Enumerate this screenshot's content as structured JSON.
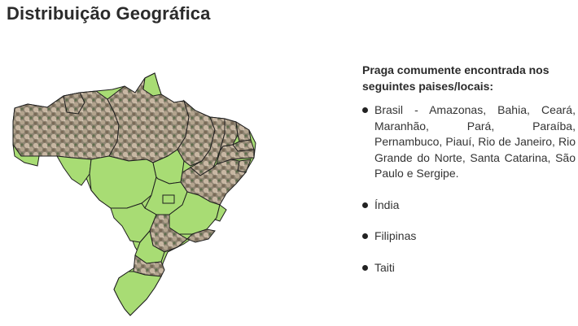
{
  "page": {
    "title": "Distribuição Geográfica"
  },
  "info": {
    "heading": "Praga comumente encontrada nos seguintes paises/locais:",
    "locations": [
      "Brasil - Amazonas, Bahia, Ceará, Maranhão, Pará, Paraíba, Pernambuco, Piauí, Rio de Janeiro, Rio Grande do Norte, Santa Catarina, São Paulo e Sergipe.",
      "Índia",
      "Filipinas",
      "Taiti"
    ]
  },
  "map": {
    "base_color": "#a8dc74",
    "border_color": "#1e1e1e",
    "infested_color": "#8e8472",
    "infested_states": [
      "Amazonas",
      "Pará",
      "Maranhão",
      "Piauí",
      "Ceará",
      "Rio Grande do Norte",
      "Paraíba",
      "Pernambuco",
      "Sergipe",
      "Bahia",
      "São Paulo",
      "Rio de Janeiro",
      "Santa Catarina"
    ]
  }
}
